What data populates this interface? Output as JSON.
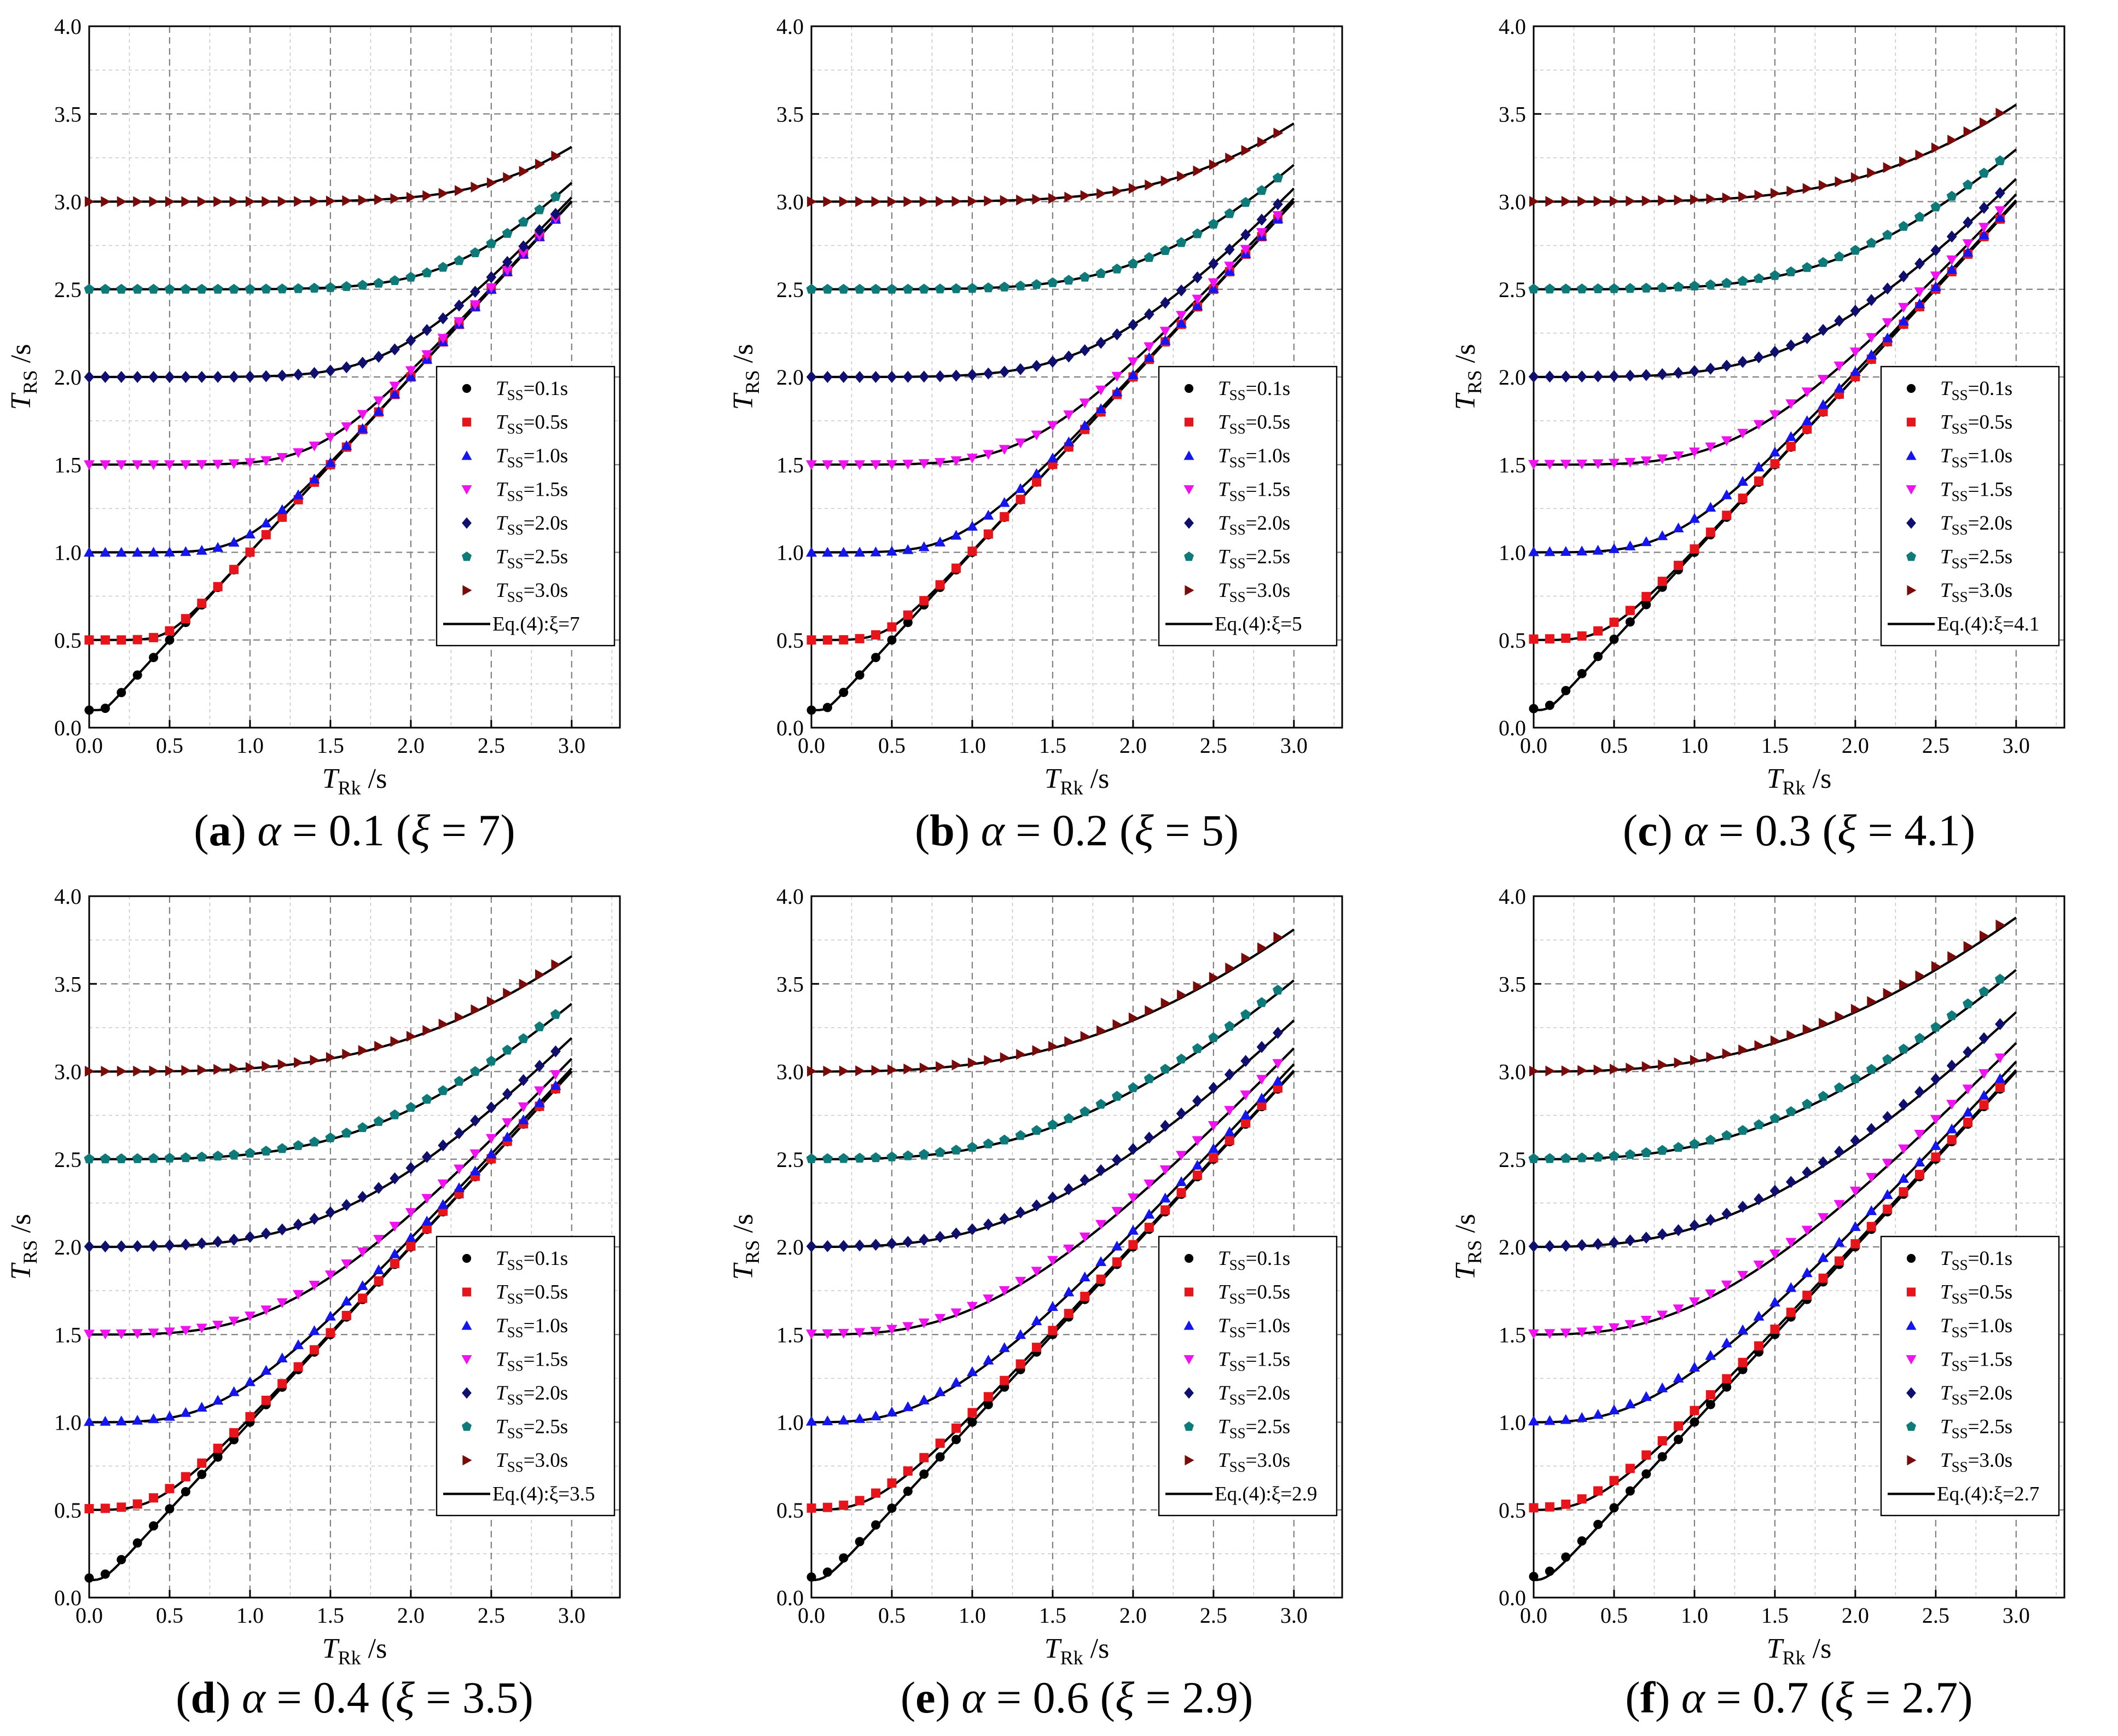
{
  "figure": {
    "panel_order": [
      "a",
      "b",
      "c",
      "d",
      "e",
      "f"
    ]
  },
  "chart_data": [
    {
      "id": "a",
      "type": "scatter",
      "panel": "a",
      "alpha": "0.1",
      "xi": "7",
      "caption": {
        "letter": "a",
        "alpha_label": "α",
        "alpha_value": "0.1",
        "xi_label": "ξ",
        "xi_value": "7"
      },
      "xlabel": {
        "main": "T",
        "sub": "Rk",
        "unit": " /s"
      },
      "ylabel": {
        "main": "T",
        "sub": "RS",
        "unit": " /s"
      },
      "xlim": [
        0.0,
        3.3
      ],
      "ylim": [
        0.0,
        4.0
      ],
      "xticks": [
        "0.0",
        "0.5",
        "1.0",
        "1.5",
        "2.0",
        "2.5",
        "3.0"
      ],
      "yticks": [
        "0.0",
        "0.5",
        "1.0",
        "1.5",
        "2.0",
        "2.5",
        "3.0",
        "3.5",
        "4.0"
      ],
      "grid": true,
      "legend_position": "lower-right",
      "series": [
        {
          "name": "TSS=0.1s",
          "T_SS": 0.1,
          "T_SS_label": "0.1"
        },
        {
          "name": "TSS=0.5s",
          "T_SS": 0.5,
          "T_SS_label": "0.5"
        },
        {
          "name": "TSS=1.0s",
          "T_SS": 1.0,
          "T_SS_label": "1.0"
        },
        {
          "name": "TSS=1.5s",
          "T_SS": 1.5,
          "T_SS_label": "1.5"
        },
        {
          "name": "TSS=2.0s",
          "T_SS": 2.0,
          "T_SS_label": "2.0"
        },
        {
          "name": "TSS=2.5s",
          "T_SS": 2.5,
          "T_SS_label": "2.5"
        },
        {
          "name": "TSS=3.0s",
          "T_SS": 3.0,
          "T_SS_label": "3.0"
        }
      ],
      "curve": {
        "name": "Eq.(4):ξ=7",
        "xi": 7
      }
    },
    {
      "id": "b",
      "type": "scatter",
      "panel": "b",
      "alpha": "0.2",
      "xi": "5",
      "caption": {
        "letter": "b",
        "alpha_label": "α",
        "alpha_value": "0.2",
        "xi_label": "ξ",
        "xi_value": "5"
      },
      "xlabel": {
        "main": "T",
        "sub": "Rk",
        "unit": " /s"
      },
      "ylabel": {
        "main": "T",
        "sub": "RS",
        "unit": " /s"
      },
      "xlim": [
        0.0,
        3.3
      ],
      "ylim": [
        0.0,
        4.0
      ],
      "xticks": [
        "0.0",
        "0.5",
        "1.0",
        "1.5",
        "2.0",
        "2.5",
        "3.0"
      ],
      "yticks": [
        "0.0",
        "0.5",
        "1.0",
        "1.5",
        "2.0",
        "2.5",
        "3.0",
        "3.5",
        "4.0"
      ],
      "grid": true,
      "legend_position": "lower-right",
      "series": [
        {
          "name": "TSS=0.1s",
          "T_SS": 0.1,
          "T_SS_label": "0.1"
        },
        {
          "name": "TSS=0.5s",
          "T_SS": 0.5,
          "T_SS_label": "0.5"
        },
        {
          "name": "TSS=1.0s",
          "T_SS": 1.0,
          "T_SS_label": "1.0"
        },
        {
          "name": "TSS=1.5s",
          "T_SS": 1.5,
          "T_SS_label": "1.5"
        },
        {
          "name": "TSS=2.0s",
          "T_SS": 2.0,
          "T_SS_label": "2.0"
        },
        {
          "name": "TSS=2.5s",
          "T_SS": 2.5,
          "T_SS_label": "2.5"
        },
        {
          "name": "TSS=3.0s",
          "T_SS": 3.0,
          "T_SS_label": "3.0"
        }
      ],
      "curve": {
        "name": "Eq.(4):ξ=5",
        "xi": 5
      }
    },
    {
      "id": "c",
      "type": "scatter",
      "panel": "c",
      "alpha": "0.3",
      "xi": "4.1",
      "caption": {
        "letter": "c",
        "alpha_label": "α",
        "alpha_value": "0.3",
        "xi_label": "ξ",
        "xi_value": "4.1"
      },
      "xlabel": {
        "main": "T",
        "sub": "Rk",
        "unit": " /s"
      },
      "ylabel": {
        "main": "T",
        "sub": "RS",
        "unit": " /s"
      },
      "xlim": [
        0.0,
        3.3
      ],
      "ylim": [
        0.0,
        4.0
      ],
      "xticks": [
        "0.0",
        "0.5",
        "1.0",
        "1.5",
        "2.0",
        "2.5",
        "3.0"
      ],
      "yticks": [
        "0.0",
        "0.5",
        "1.0",
        "1.5",
        "2.0",
        "2.5",
        "3.0",
        "3.5",
        "4.0"
      ],
      "grid": true,
      "legend_position": "lower-right",
      "series": [
        {
          "name": "TSS=0.1s",
          "T_SS": 0.1,
          "T_SS_label": "0.1"
        },
        {
          "name": "TSS=0.5s",
          "T_SS": 0.5,
          "T_SS_label": "0.5"
        },
        {
          "name": "TSS=1.0s",
          "T_SS": 1.0,
          "T_SS_label": "1.0"
        },
        {
          "name": "TSS=1.5s",
          "T_SS": 1.5,
          "T_SS_label": "1.5"
        },
        {
          "name": "TSS=2.0s",
          "T_SS": 2.0,
          "T_SS_label": "2.0"
        },
        {
          "name": "TSS=2.5s",
          "T_SS": 2.5,
          "T_SS_label": "2.5"
        },
        {
          "name": "TSS=3.0s",
          "T_SS": 3.0,
          "T_SS_label": "3.0"
        }
      ],
      "curve": {
        "name": "Eq.(4):ξ=4.1",
        "xi": 4.1
      }
    },
    {
      "id": "d",
      "type": "scatter",
      "panel": "d",
      "alpha": "0.4",
      "xi": "3.5",
      "caption": {
        "letter": "d",
        "alpha_label": "α",
        "alpha_value": "0.4",
        "xi_label": "ξ",
        "xi_value": "3.5"
      },
      "xlabel": {
        "main": "T",
        "sub": "Rk",
        "unit": " /s"
      },
      "ylabel": {
        "main": "T",
        "sub": "RS",
        "unit": " /s"
      },
      "xlim": [
        0.0,
        3.3
      ],
      "ylim": [
        0.0,
        4.0
      ],
      "xticks": [
        "0.0",
        "0.5",
        "1.0",
        "1.5",
        "2.0",
        "2.5",
        "3.0"
      ],
      "yticks": [
        "0.0",
        "0.5",
        "1.0",
        "1.5",
        "2.0",
        "2.5",
        "3.0",
        "3.5",
        "4.0"
      ],
      "grid": true,
      "legend_position": "lower-right",
      "series": [
        {
          "name": "TSS=0.1s",
          "T_SS": 0.1,
          "T_SS_label": "0.1"
        },
        {
          "name": "TSS=0.5s",
          "T_SS": 0.5,
          "T_SS_label": "0.5"
        },
        {
          "name": "TSS=1.0s",
          "T_SS": 1.0,
          "T_SS_label": "1.0"
        },
        {
          "name": "TSS=1.5s",
          "T_SS": 1.5,
          "T_SS_label": "1.5"
        },
        {
          "name": "TSS=2.0s",
          "T_SS": 2.0,
          "T_SS_label": "2.0"
        },
        {
          "name": "TSS=2.5s",
          "T_SS": 2.5,
          "T_SS_label": "2.5"
        },
        {
          "name": "TSS=3.0s",
          "T_SS": 3.0,
          "T_SS_label": "3.0"
        }
      ],
      "curve": {
        "name": "Eq.(4):ξ=3.5",
        "xi": 3.5
      }
    },
    {
      "id": "e",
      "type": "scatter",
      "panel": "e",
      "alpha": "0.6",
      "xi": "2.9",
      "caption": {
        "letter": "e",
        "alpha_label": "α",
        "alpha_value": "0.6",
        "xi_label": "ξ",
        "xi_value": "2.9"
      },
      "xlabel": {
        "main": "T",
        "sub": "Rk",
        "unit": " /s"
      },
      "ylabel": {
        "main": "T",
        "sub": "RS",
        "unit": " /s"
      },
      "xlim": [
        0.0,
        3.3
      ],
      "ylim": [
        0.0,
        4.0
      ],
      "xticks": [
        "0.0",
        "0.5",
        "1.0",
        "1.5",
        "2.0",
        "2.5",
        "3.0"
      ],
      "yticks": [
        "0.0",
        "0.5",
        "1.0",
        "1.5",
        "2.0",
        "2.5",
        "3.0",
        "3.5",
        "4.0"
      ],
      "grid": true,
      "legend_position": "lower-right",
      "series": [
        {
          "name": "TSS=0.1s",
          "T_SS": 0.1,
          "T_SS_label": "0.1"
        },
        {
          "name": "TSS=0.5s",
          "T_SS": 0.5,
          "T_SS_label": "0.5"
        },
        {
          "name": "TSS=1.0s",
          "T_SS": 1.0,
          "T_SS_label": "1.0"
        },
        {
          "name": "TSS=1.5s",
          "T_SS": 1.5,
          "T_SS_label": "1.5"
        },
        {
          "name": "TSS=2.0s",
          "T_SS": 2.0,
          "T_SS_label": "2.0"
        },
        {
          "name": "TSS=2.5s",
          "T_SS": 2.5,
          "T_SS_label": "2.5"
        },
        {
          "name": "TSS=3.0s",
          "T_SS": 3.0,
          "T_SS_label": "3.0"
        }
      ],
      "curve": {
        "name": "Eq.(4):ξ=2.9",
        "xi": 2.9
      }
    },
    {
      "id": "f",
      "type": "scatter",
      "panel": "f",
      "alpha": "0.7",
      "xi": "2.7",
      "caption": {
        "letter": "f",
        "alpha_label": "α",
        "alpha_value": "0.7",
        "xi_label": "ξ",
        "xi_value": "2.7"
      },
      "xlabel": {
        "main": "T",
        "sub": "Rk",
        "unit": " /s"
      },
      "ylabel": {
        "main": "T",
        "sub": "RS",
        "unit": " /s"
      },
      "xlim": [
        0.0,
        3.3
      ],
      "ylim": [
        0.0,
        4.0
      ],
      "xticks": [
        "0.0",
        "0.5",
        "1.0",
        "1.5",
        "2.0",
        "2.5",
        "3.0"
      ],
      "yticks": [
        "0.0",
        "0.5",
        "1.0",
        "1.5",
        "2.0",
        "2.5",
        "3.0",
        "3.5",
        "4.0"
      ],
      "grid": true,
      "legend_position": "lower-right",
      "series": [
        {
          "name": "TSS=0.1s",
          "T_SS": 0.1,
          "T_SS_label": "0.1"
        },
        {
          "name": "TSS=0.5s",
          "T_SS": 0.5,
          "T_SS_label": "0.5"
        },
        {
          "name": "TSS=1.0s",
          "T_SS": 1.0,
          "T_SS_label": "1.0"
        },
        {
          "name": "TSS=1.5s",
          "T_SS": 1.5,
          "T_SS_label": "1.5"
        },
        {
          "name": "TSS=2.0s",
          "T_SS": 2.0,
          "T_SS_label": "2.0"
        },
        {
          "name": "TSS=2.5s",
          "T_SS": 2.5,
          "T_SS_label": "2.5"
        },
        {
          "name": "TSS=3.0s",
          "T_SS": 3.0,
          "T_SS_label": "3.0"
        }
      ],
      "curve": {
        "name": "Eq.(4):ξ=2.7",
        "xi": 2.7
      }
    }
  ],
  "legend": {
    "symbol_main": "T",
    "symbol_sub": "SS",
    "unit_suffix": "s",
    "curve_color": "#000000"
  },
  "series_style": [
    {
      "marker": "circle",
      "color": "#000000"
    },
    {
      "marker": "square",
      "color": "#e8141b"
    },
    {
      "marker": "triangle-up",
      "color": "#1515ef"
    },
    {
      "marker": "triangle-down",
      "color": "#f013f0"
    },
    {
      "marker": "diamond",
      "color": "#0f0f6e"
    },
    {
      "marker": "pentagon",
      "color": "#0f7a7a"
    },
    {
      "marker": "triangle-right",
      "color": "#7a0b0b"
    }
  ],
  "colors": {
    "axis": "#000000",
    "grid_major": "#808080",
    "grid_minor": "#c8c8c8",
    "background": "#ffffff"
  }
}
